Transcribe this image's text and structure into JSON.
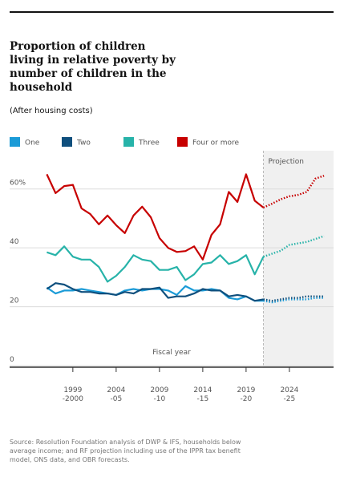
{
  "chart_data": {
    "type": "line",
    "title": "Proportion of children living in relative poverty by number of children in the household",
    "subtitle": "(After housing costs)",
    "x_label": "Fiscal year",
    "projection_label": "Projection",
    "projection_start": 2021,
    "source": "Source: Resolution Foundation analysis of DWP & IFS, households below average income; and RF projection including use of the IPPR tax benefit model, ONS data, and OBR forecasts.",
    "x": [
      1996,
      1997,
      1998,
      1999,
      2000,
      2001,
      2002,
      2003,
      2004,
      2005,
      2006,
      2007,
      2008,
      2009,
      2010,
      2011,
      2012,
      2013,
      2014,
      2015,
      2016,
      2017,
      2018,
      2019,
      2020,
      2021,
      2022,
      2023,
      2024,
      2025,
      2026,
      2027,
      2028
    ],
    "xlim": [
      1991.7,
      2029.1
    ],
    "xticks": [
      {
        "value": 1999,
        "label": [
          "1999",
          "-2000"
        ]
      },
      {
        "value": 2004,
        "label": [
          "2004",
          "-05"
        ]
      },
      {
        "value": 2009,
        "label": [
          "2009",
          "-10"
        ]
      },
      {
        "value": 2014,
        "label": [
          "2014",
          "-15"
        ]
      },
      {
        "value": 2019,
        "label": [
          "2019",
          "-20"
        ]
      },
      {
        "value": 2024,
        "label": [
          "2024",
          "-25"
        ]
      }
    ],
    "ylim": [
      0,
      73
    ],
    "yticks": [
      0,
      20,
      40,
      {
        "value": 60,
        "label": "60%"
      }
    ],
    "grid": true,
    "series": [
      {
        "name": "One",
        "color": "#1b9bd7",
        "values": [
          26.5,
          24.5,
          25.5,
          25.5,
          26,
          25.5,
          25,
          24.5,
          24,
          25.5,
          26,
          25.5,
          26,
          26,
          25.5,
          24,
          27,
          25.5,
          25.5,
          26,
          25.5,
          23,
          22.5,
          23.5,
          22,
          22,
          21.5,
          22,
          22.5,
          22.5,
          22.5,
          23,
          23
        ]
      },
      {
        "name": "Two",
        "color": "#0f4f7d",
        "values": [
          26,
          28,
          27.5,
          26,
          25,
          25,
          24.5,
          24.5,
          24,
          25,
          24.5,
          26,
          26,
          26.5,
          23,
          23.5,
          23.5,
          24.5,
          26,
          25.5,
          25.5,
          23.5,
          24,
          23.5,
          22,
          22.5,
          22,
          22.5,
          23,
          23,
          23.5,
          23.5,
          23.5
        ]
      },
      {
        "name": "Three",
        "color": "#27b3a9",
        "values": [
          38.5,
          37.5,
          40.5,
          37,
          36,
          36,
          33.5,
          28.5,
          30.5,
          33.5,
          37.5,
          36,
          35.5,
          32.5,
          32.5,
          33.5,
          29,
          31,
          34.5,
          35,
          37.5,
          34.5,
          35.5,
          37.5,
          31,
          37,
          38,
          39,
          41,
          41.5,
          42,
          43,
          44
        ]
      },
      {
        "name": "Four or more",
        "color": "#c70000",
        "values": [
          65,
          58.6,
          61,
          61.4,
          53.4,
          51.5,
          48,
          51,
          47.7,
          45,
          51,
          54,
          50.4,
          43.3,
          40,
          38.6,
          38.9,
          40.5,
          36,
          44.4,
          48,
          59,
          55.6,
          65,
          56,
          53.7,
          55,
          56.5,
          57.5,
          58,
          59,
          63.5,
          64.5
        ]
      }
    ]
  }
}
